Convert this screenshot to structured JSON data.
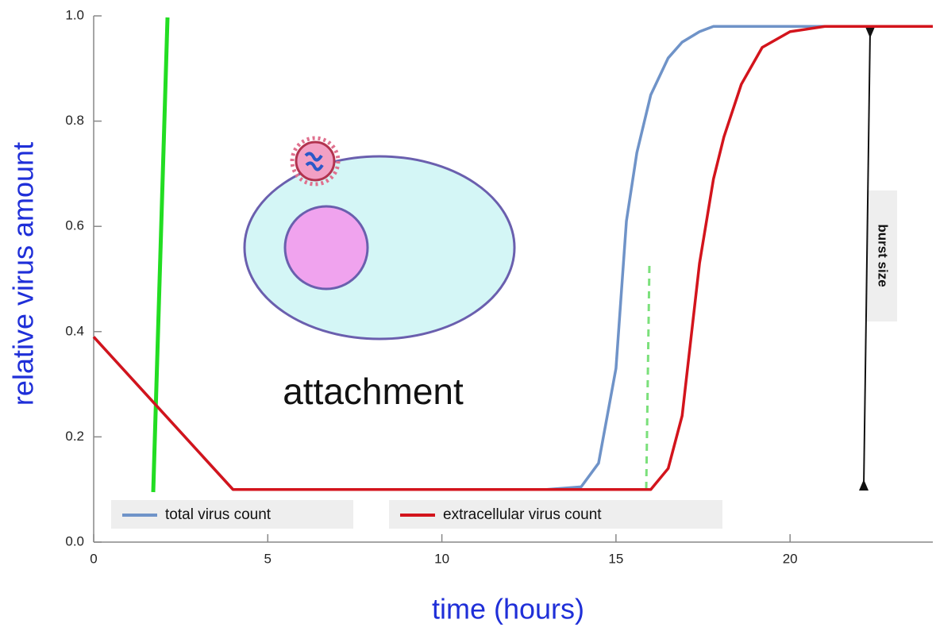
{
  "chart_data": {
    "type": "line",
    "x_label": "time (hours)",
    "y_label": "relative virus amount",
    "x": [
      0,
      4,
      13,
      14,
      14.5,
      15,
      15.3,
      15.6,
      16,
      16.5,
      16.9,
      17.4,
      17.8,
      18.1,
      18.6,
      19.2,
      20,
      21,
      22,
      24.1
    ],
    "series": [
      {
        "name": "total virus count",
        "color": "#6f93c8",
        "values": [
          0.39,
          0.1,
          0.1,
          0.105,
          0.15,
          0.33,
          0.61,
          0.74,
          0.85,
          0.92,
          0.95,
          0.97,
          0.98,
          0.98,
          0.98,
          0.98,
          0.98,
          0.98,
          0.98,
          0.98
        ]
      },
      {
        "name": "extracellular virus count",
        "color": "#d3141c",
        "values": [
          0.39,
          0.1,
          0.1,
          0.1,
          0.1,
          0.1,
          0.1,
          0.1,
          0.1,
          0.14,
          0.24,
          0.53,
          0.69,
          0.77,
          0.87,
          0.94,
          0.97,
          0.98,
          0.98,
          0.98
        ]
      }
    ],
    "xlim": [
      0,
      24.1
    ],
    "ylim": [
      0,
      1
    ],
    "xticks": [
      0,
      5,
      10,
      15,
      20
    ],
    "yticks": [
      {
        "value": 0,
        "label": "0.0"
      },
      0.2,
      0.4,
      0.6,
      0.8,
      {
        "value": 1,
        "label": "1.0"
      }
    ],
    "legend": "bottom",
    "annotations": [
      "attachment",
      "burst size"
    ]
  }
}
